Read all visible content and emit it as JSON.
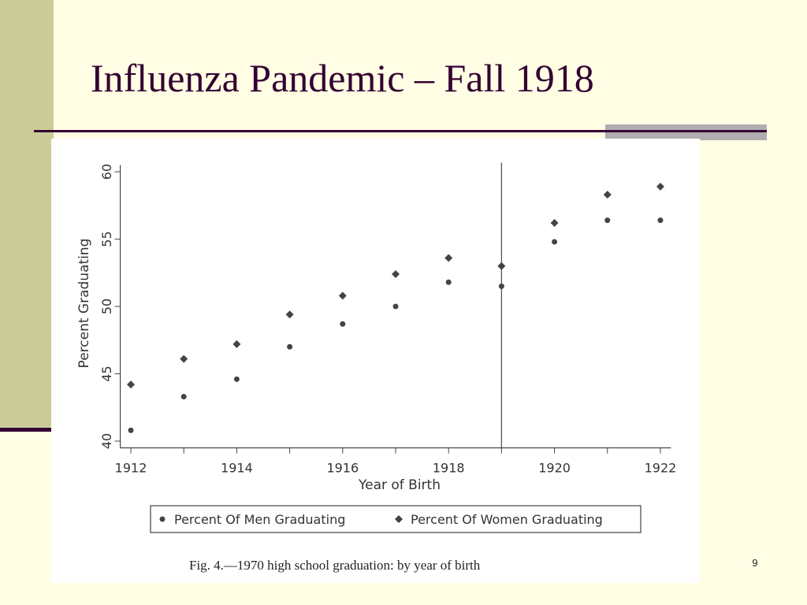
{
  "slide": {
    "title": "Influenza Pandemic – Fall 1918",
    "page_number": "9"
  },
  "chart_data": {
    "type": "scatter",
    "caption": "Fig. 4.—1970 high school graduation: by year of birth",
    "x_label": "Year of Birth",
    "y_label": "Percent Graduating",
    "x": [
      1912,
      1913,
      1914,
      1915,
      1916,
      1917,
      1918,
      1919,
      1920,
      1921,
      1922
    ],
    "series": [
      {
        "name": "Percent Of Men Graduating",
        "color": "#444444",
        "marker": "circle",
        "values": [
          40.8,
          43.3,
          44.6,
          47.0,
          48.7,
          50.0,
          51.8,
          51.5,
          54.8,
          56.4,
          56.4
        ]
      },
      {
        "name": "Percent Of Women Graduating",
        "color": "#444444",
        "marker": "diamond",
        "values": [
          44.2,
          46.1,
          47.2,
          49.4,
          50.8,
          52.4,
          53.6,
          53.0,
          56.2,
          58.3,
          58.9
        ]
      }
    ],
    "xlim": [
      1911.8,
      1922.2
    ],
    "ylim": [
      39.5,
      60.5
    ],
    "xticks": [
      1912,
      1914,
      1916,
      1918,
      1920,
      1922
    ],
    "xminorticks": [
      1913,
      1915,
      1917,
      1919,
      1921
    ],
    "yticks": [
      40,
      45,
      50,
      55,
      60
    ],
    "vline": 1919,
    "grid": false,
    "legend": "bottom"
  }
}
